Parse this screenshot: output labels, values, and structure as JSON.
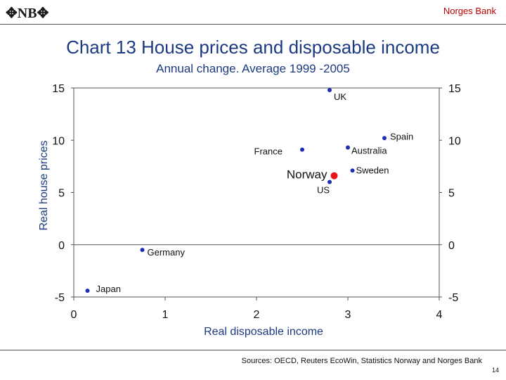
{
  "header": {
    "logo_text": "NB",
    "bank_name": "Norges Bank"
  },
  "footer": {
    "sources": "Sources: OECD, Reuters EcoWin, Statistics Norway and Norges Bank",
    "page_number": "14"
  },
  "chart_data": {
    "type": "scatter",
    "title": "Chart 13 House prices and disposable income",
    "subtitle": "Annual change. Average 1999 -2005",
    "xlabel": "Real disposable income",
    "ylabel": "Real house prices",
    "xlim": [
      0,
      4
    ],
    "ylim": [
      -5,
      15
    ],
    "xticks": [
      "0",
      "1",
      "2",
      "3",
      "4"
    ],
    "yticks_left": [
      "15",
      "10",
      "5",
      "0",
      "-5"
    ],
    "yticks_right": [
      "15",
      "10",
      "5",
      "0",
      "-5"
    ],
    "grid": false,
    "colors": {
      "point": "#1f2db5",
      "highlight": "#e8141c"
    },
    "points": [
      {
        "label": "UK",
        "x": 2.8,
        "y": 14.8
      },
      {
        "label": "Spain",
        "x": 3.4,
        "y": 10.2
      },
      {
        "label": "France",
        "x": 2.5,
        "y": 9.1
      },
      {
        "label": "Australia",
        "x": 3.0,
        "y": 9.3
      },
      {
        "label": "Norway",
        "x": 2.85,
        "y": 6.6,
        "highlight": true
      },
      {
        "label": "Sweden",
        "x": 3.05,
        "y": 7.1
      },
      {
        "label": "US",
        "x": 2.8,
        "y": 6.0
      },
      {
        "label": "Germany",
        "x": 0.75,
        "y": -0.5
      },
      {
        "label": "Japan",
        "x": 0.15,
        "y": -4.4
      }
    ]
  }
}
